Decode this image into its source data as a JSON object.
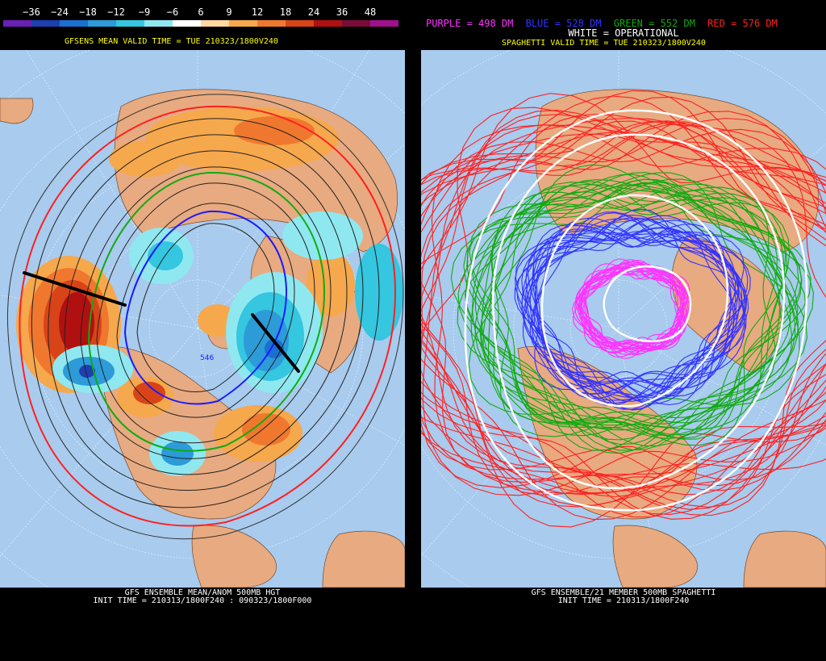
{
  "left": {
    "scale_labels": [
      "−36",
      "−24",
      "−18",
      "−12",
      "−9",
      "−6",
      "6",
      "9",
      "12",
      "18",
      "24",
      "36",
      "48"
    ],
    "scale_colors": [
      "#6a1fb5",
      "#1e3fb0",
      "#1a6fd0",
      "#2c9bd8",
      "#35c6e0",
      "#8fe8f0",
      "#ffffff",
      "#ffd9a0",
      "#f6a84c",
      "#f0782e",
      "#d84418",
      "#b01010",
      "#7a0c38",
      "#a0108a"
    ],
    "title": "GFSENS MEAN VALID TIME = TUE 210323/1800V240",
    "contour_label": "546",
    "footer_line1": "GFS ENSEMBLE MEAN/ANOM 500MB HGT",
    "footer_line2": "INIT TIME = 210313/1800F240 : 090323/1800F000"
  },
  "right": {
    "legend": [
      {
        "text": "PURPLE = 498 DM",
        "color": "#ff33ff"
      },
      {
        "text": "BLUE = 528 DM",
        "color": "#3333ff"
      },
      {
        "text": "GREEN = 552 DM",
        "color": "#11aa11"
      },
      {
        "text": "RED = 576 DM",
        "color": "#ff2020"
      }
    ],
    "white_legend": "WHITE = OPERATIONAL",
    "title": "SPAGHETTI VALID TIME = TUE 210323/1800V240",
    "footer_line1": "GFS ENSEMBLE/21 MEMBER 500MB SPAGHETTI",
    "footer_line2": "INIT TIME = 210313/1800F240"
  }
}
